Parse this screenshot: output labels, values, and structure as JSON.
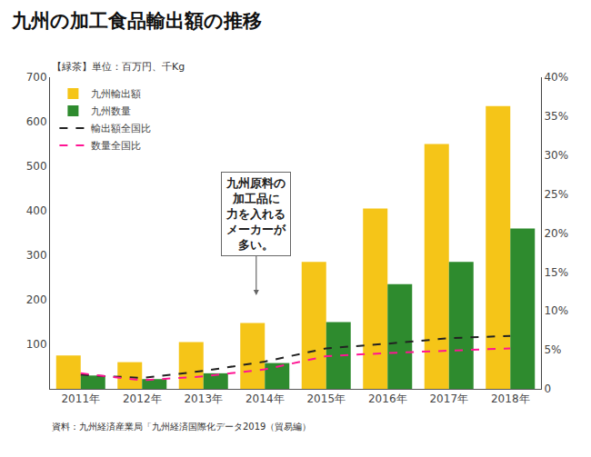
{
  "chart_data": {
    "type": "bar",
    "title": "九州の加工食品輸出額の推移",
    "subtitle": "【緑茶】単位：百万円、千Kg",
    "categories": [
      "2011年",
      "2012年",
      "2013年",
      "2014年",
      "2015年",
      "2016年",
      "2017年",
      "2018年"
    ],
    "series": [
      {
        "name": "九州輸出額",
        "type": "bar",
        "color": "#F5C518",
        "values": [
          75,
          60,
          105,
          148,
          285,
          405,
          550,
          635
        ]
      },
      {
        "name": "九州数量",
        "type": "bar",
        "color": "#2E8B2E",
        "values": [
          30,
          22,
          35,
          58,
          150,
          235,
          285,
          360
        ]
      },
      {
        "name": "輸出額全国比",
        "type": "line",
        "color": "#222222",
        "line_style": "dashed",
        "axis": "y2",
        "values": [
          1.8,
          1.4,
          2.3,
          3.5,
          5.2,
          5.8,
          6.5,
          6.8
        ]
      },
      {
        "name": "数量全国比",
        "type": "line",
        "color": "#FF1493",
        "line_style": "dashed",
        "axis": "y2",
        "values": [
          2.0,
          1.1,
          1.6,
          2.5,
          4.2,
          4.6,
          4.9,
          5.2
        ]
      }
    ],
    "ylim": [
      0,
      700
    ],
    "yticks": [
      100,
      200,
      300,
      400,
      500,
      600,
      700
    ],
    "y2lim": [
      0,
      40
    ],
    "y2ticks": [
      0,
      {
        "value": 5,
        "label": "5%"
      },
      {
        "value": 10,
        "label": "10%"
      },
      {
        "value": 15,
        "label": "15%"
      },
      {
        "value": 20,
        "label": "20%"
      },
      {
        "value": 25,
        "label": "25%"
      },
      {
        "value": 30,
        "label": "30%"
      },
      {
        "value": 35,
        "label": "35%"
      },
      {
        "value": 40,
        "label": "40%"
      }
    ],
    "grid": false,
    "legend": "upper left",
    "annotations": [
      "九州原料の\n加工品に\n力を入れる\nメーカーが\n多い。"
    ],
    "source": "資料：九州経済産業局「九州経済国際化データ2019（貿易編）"
  }
}
